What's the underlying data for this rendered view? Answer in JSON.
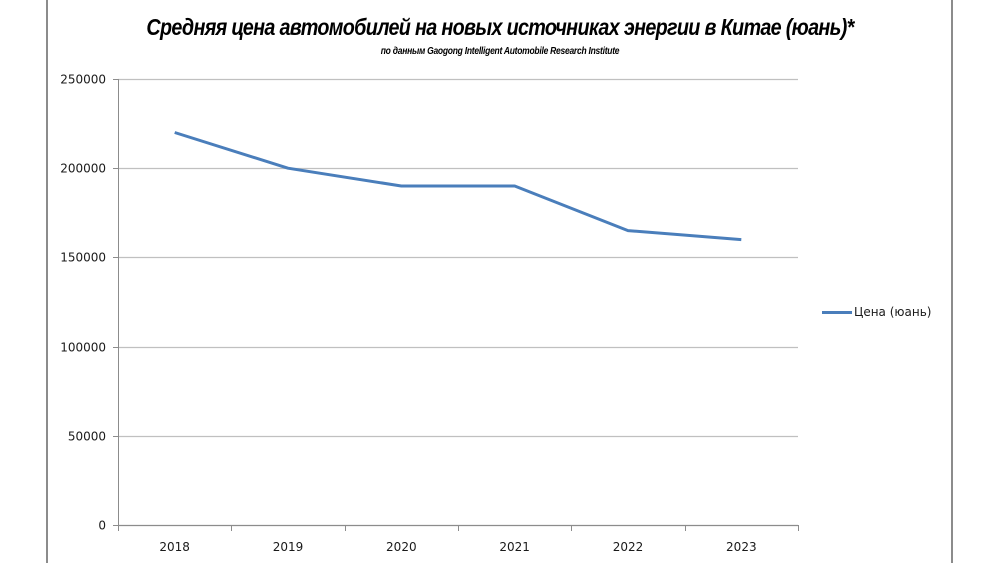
{
  "chart_data": {
    "type": "line",
    "title": "Средняя цена автомобилей на новых источниках энергии в Китае (юань)*",
    "subtitle": "по данным Gaogong Intelligent Automobile Research Institute",
    "categories": [
      "2018",
      "2019",
      "2020",
      "2021",
      "2022",
      "2023"
    ],
    "series": [
      {
        "name": "Цена (юань)",
        "color": "#4a7ebb",
        "values": [
          220000,
          200000,
          190000,
          190000,
          165000,
          160000
        ]
      }
    ],
    "xlabel": "",
    "ylabel": "",
    "ylim": [
      0,
      250000
    ],
    "yticks": [
      "0",
      "50000",
      "100000",
      "150000",
      "200000",
      "250000"
    ],
    "grid": true,
    "legend_position": "right"
  }
}
